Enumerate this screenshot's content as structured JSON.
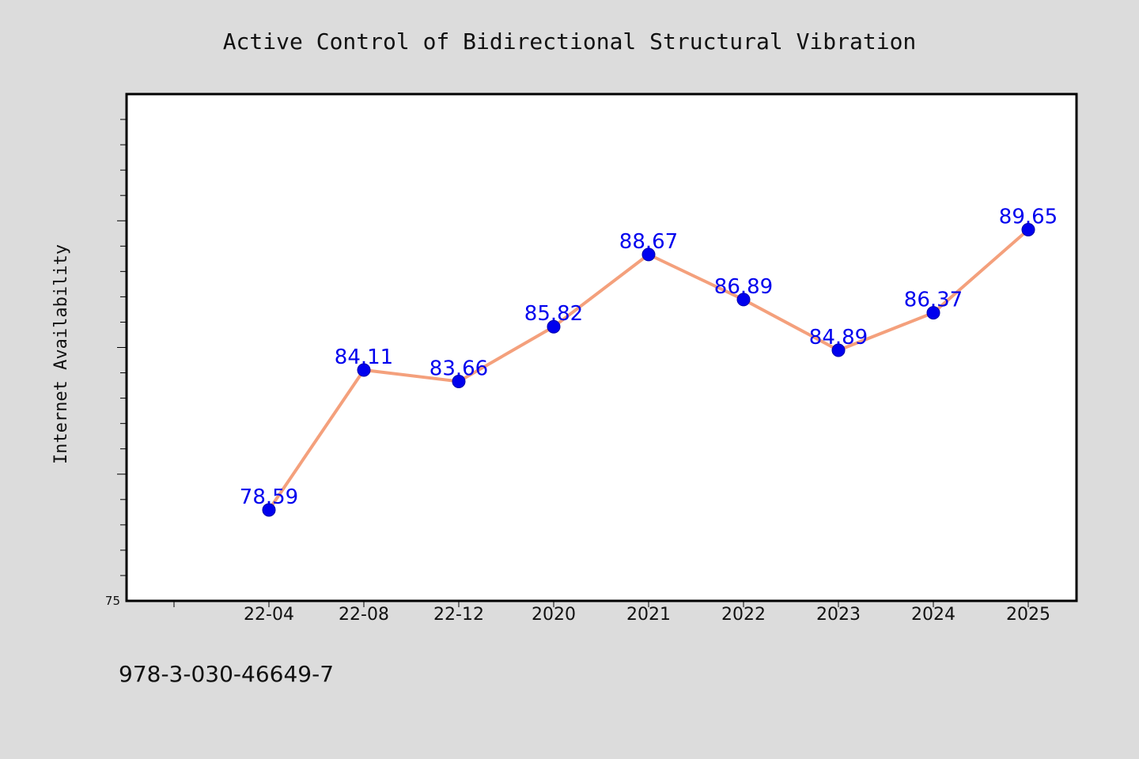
{
  "chart_data": {
    "type": "line",
    "title": "Active Control of Bidirectional Structural Vibration",
    "xlabel": "",
    "ylabel": "Internet Availability",
    "categories": [
      "22-04",
      "22-08",
      "22-12",
      "2020",
      "2021",
      "2022",
      "2023",
      "2024",
      "2025"
    ],
    "series": [
      {
        "values": [
          78.59,
          84.11,
          83.66,
          85.82,
          88.67,
          86.89,
          84.89,
          86.37,
          89.65
        ]
      }
    ],
    "data_labels": [
      "78.59",
      "84.11",
      "83.66",
      "85.82",
      "88.67",
      "86.89",
      "84.89",
      "86.37",
      "89.65"
    ],
    "ylim": [
      75,
      95
    ],
    "y_tick_labels": [
      "75"
    ],
    "grid": false,
    "legend": "none"
  },
  "footer": {
    "identifier": "978-3-030-46649-7"
  },
  "colors": {
    "background": "#dcdcdc",
    "plot_background": "#ffffff",
    "line": "#f4a07c",
    "marker": "#0000ee",
    "data_label": "#0000ee",
    "axis": "#000000"
  }
}
